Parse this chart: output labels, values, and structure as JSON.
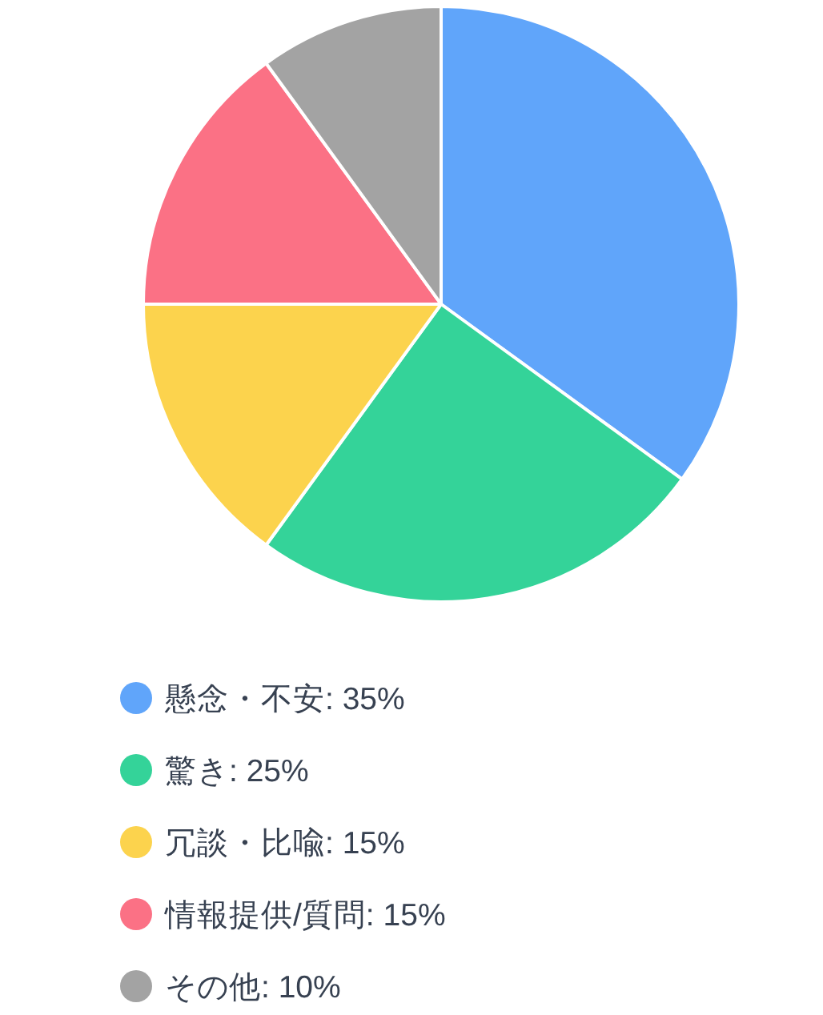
{
  "chart_data": {
    "type": "pie",
    "categories": [
      "懸念・不安",
      "驚き",
      "冗談・比喩",
      "情報提供/質問",
      "その他"
    ],
    "values": [
      35,
      25,
      15,
      15,
      10
    ],
    "value_labels": [
      "35%",
      "25%",
      "15%",
      "15%",
      "10%"
    ],
    "colors": [
      "#60a5fa",
      "#34d399",
      "#fcd34d",
      "#fb7185",
      "#a3a3a3"
    ],
    "legend": "bottom"
  }
}
